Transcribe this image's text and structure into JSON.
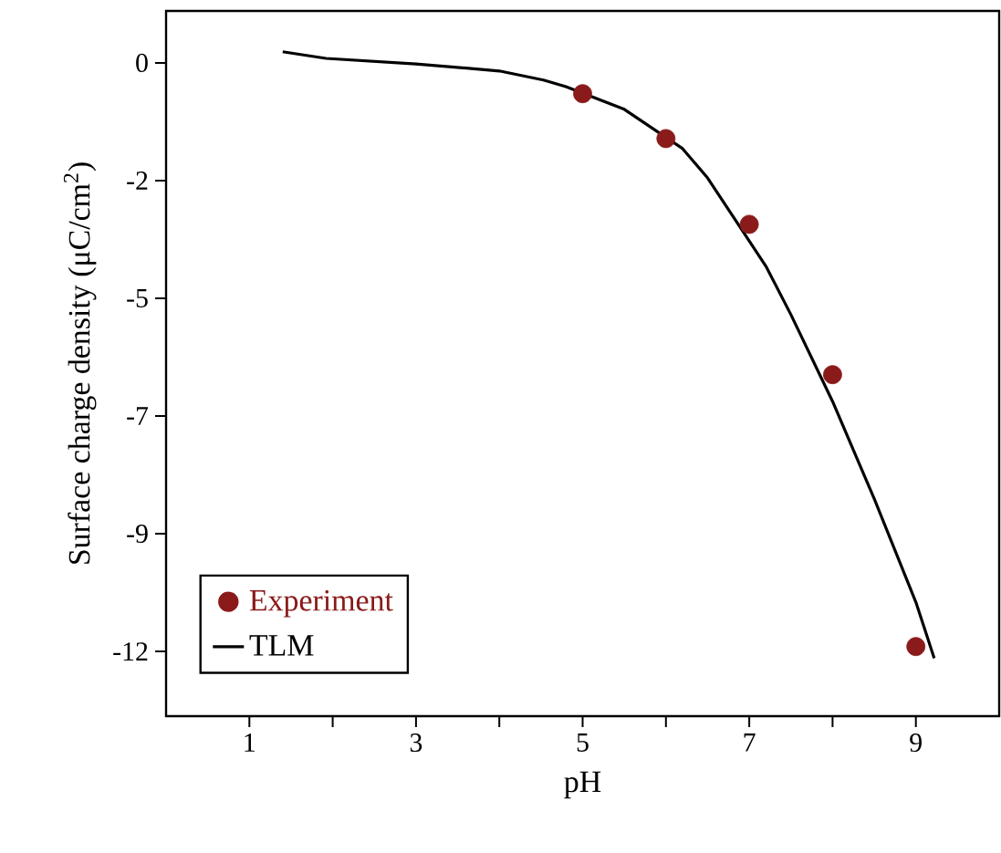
{
  "chart_data": {
    "type": "line",
    "xlabel": "pH",
    "ylabel": "Surface charge density (μC/cm$^{2}$)",
    "xlim": [
      0,
      10
    ],
    "ylim": [
      -12.95,
      1.03
    ],
    "xticks": [
      1,
      {
        "value": 2,
        "label": null
      },
      3,
      {
        "value": 4,
        "label": null
      },
      5,
      {
        "value": 6,
        "label": null
      },
      7,
      {
        "value": 8,
        "label": null
      },
      9
    ],
    "yticks": [
      {
        "value": 0,
        "label": "0"
      },
      {
        "value": -2.333,
        "label": "-2"
      },
      {
        "value": -4.667,
        "label": "-5"
      },
      {
        "value": -7,
        "label": "-7"
      },
      {
        "value": -9.333,
        "label": "-9"
      },
      {
        "value": -11.667,
        "label": "-12"
      }
    ],
    "legend": "bottom left",
    "series": [
      {
        "name": "Experiment",
        "type": "scatter",
        "marker": "circle",
        "color": "#8b1a1a",
        "x": [
          5,
          6,
          7,
          8,
          9
        ],
        "values": [
          -0.61,
          -1.5,
          -3.2,
          -6.18,
          -11.57
        ]
      },
      {
        "name": "TLM",
        "line_style": "solid",
        "color": "#000000",
        "x": [
          1.4,
          1.92,
          3,
          4,
          4.53,
          4.8,
          5.5,
          6.2,
          6.5,
          7.2,
          7.5,
          8,
          8.5,
          9,
          9.22
        ],
        "values": [
          0.22,
          0.09,
          -0.02,
          -0.16,
          -0.34,
          -0.47,
          -0.92,
          -1.7,
          -2.28,
          -4.03,
          -4.99,
          -6.71,
          -8.64,
          -10.69,
          -11.8
        ]
      }
    ]
  }
}
